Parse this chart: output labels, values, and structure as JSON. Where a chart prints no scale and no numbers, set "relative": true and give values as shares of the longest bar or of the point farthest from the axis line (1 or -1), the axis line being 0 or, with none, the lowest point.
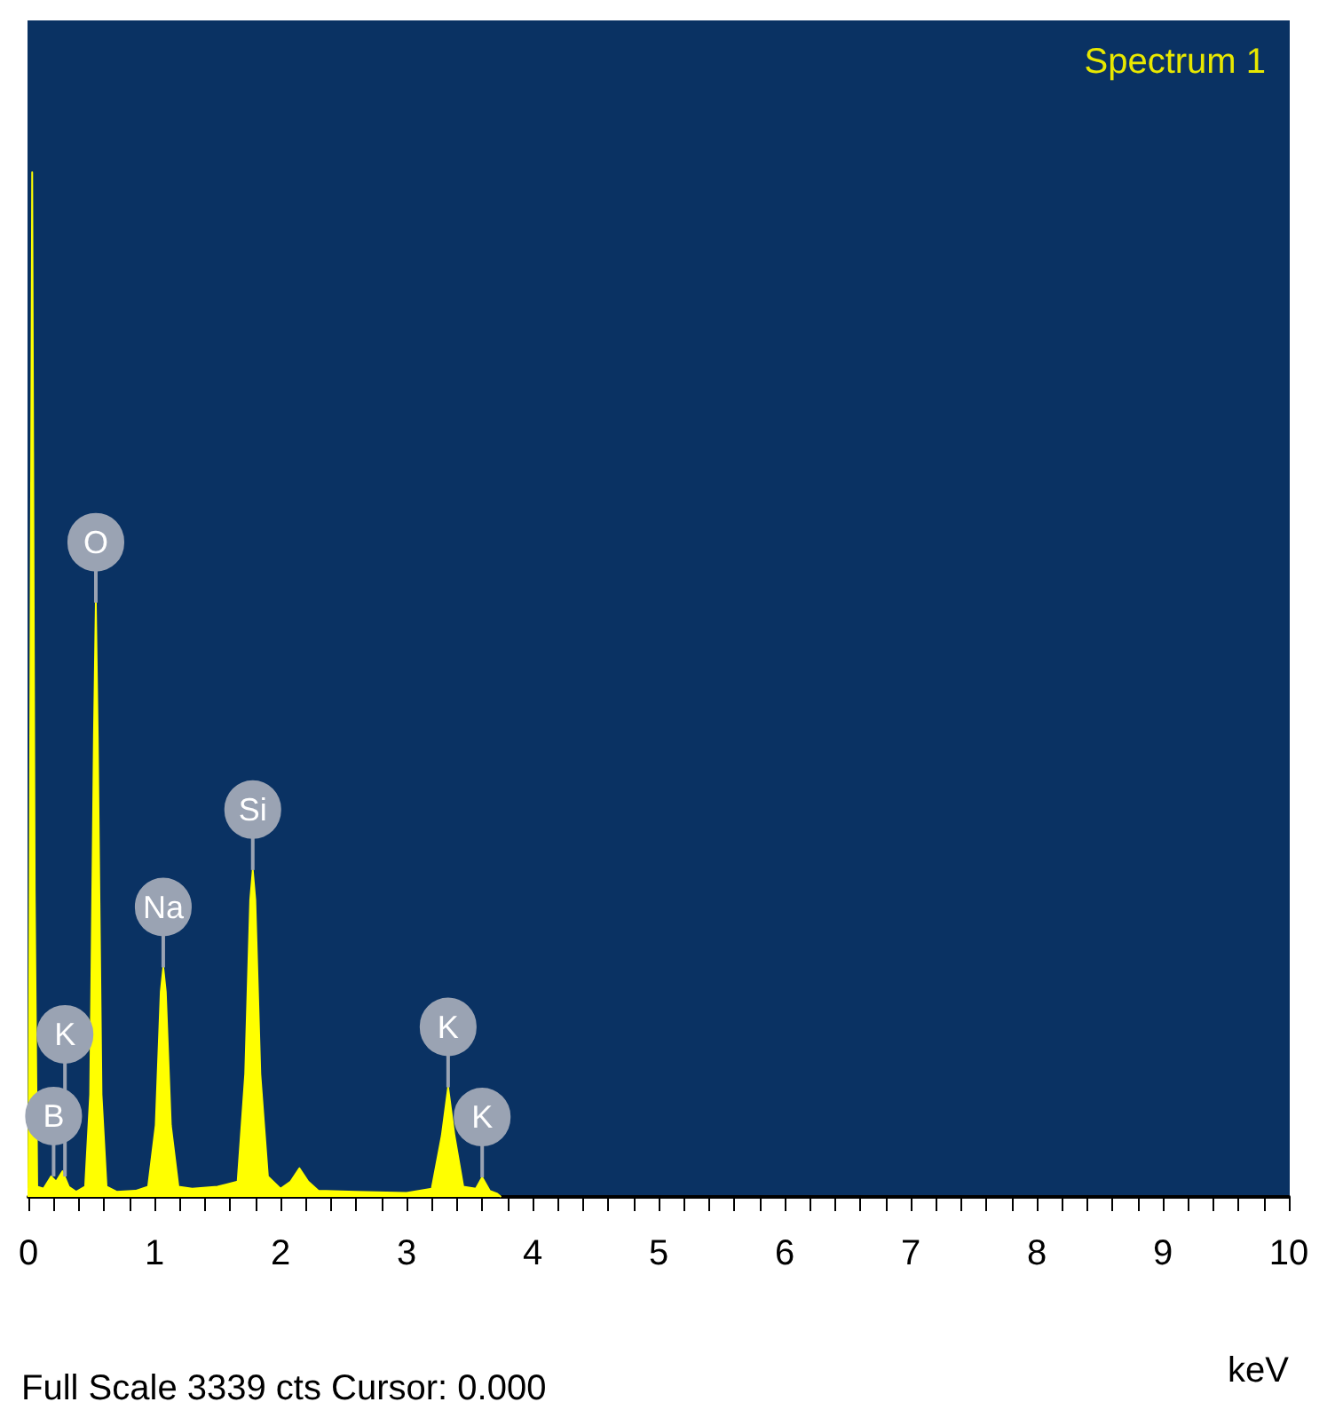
{
  "chart_data": {
    "type": "area",
    "title": "Spectrum 1",
    "xlabel": "keV",
    "relative": true,
    "color": "#ffff00",
    "x": [
      0,
      0.01,
      0.03,
      0.05,
      0.07,
      0.12,
      0.18,
      0.22,
      0.27,
      0.32,
      0.38,
      0.45,
      0.49,
      0.52,
      0.535,
      0.55,
      0.58,
      0.62,
      0.7,
      0.85,
      0.95,
      1.01,
      1.05,
      1.07,
      1.09,
      1.13,
      1.19,
      1.3,
      1.5,
      1.66,
      1.72,
      1.76,
      1.78,
      1.8,
      1.84,
      1.9,
      2.0,
      2.08,
      2.15,
      2.22,
      2.3,
      2.6,
      3.0,
      3.2,
      3.28,
      3.33,
      3.38,
      3.45,
      3.55,
      3.6,
      3.66,
      3.72,
      3.75
    ],
    "values": [
      0,
      0.3,
      1,
      0.3,
      0.01,
      0.008,
      0.02,
      0.015,
      0.025,
      0.01,
      0.005,
      0.01,
      0.1,
      0.45,
      0.58,
      0.45,
      0.1,
      0.01,
      0.005,
      0.006,
      0.01,
      0.07,
      0.2,
      0.224,
      0.2,
      0.07,
      0.01,
      0.008,
      0.01,
      0.015,
      0.12,
      0.29,
      0.319,
      0.29,
      0.12,
      0.02,
      0.008,
      0.015,
      0.028,
      0.015,
      0.006,
      0.005,
      0.004,
      0.008,
      0.06,
      0.107,
      0.06,
      0.01,
      0.008,
      0.019,
      0.006,
      0.003,
      0
    ],
    "xlim": [
      0,
      10
    ],
    "xticks": [
      0,
      {
        "value": 0.2,
        "label": null
      },
      {
        "value": 0.4,
        "label": null
      },
      {
        "value": 0.6,
        "label": null
      },
      {
        "value": 0.8,
        "label": null
      },
      1,
      {
        "value": 1.2,
        "label": null
      },
      {
        "value": 1.4,
        "label": null
      },
      {
        "value": 1.6,
        "label": null
      },
      {
        "value": 1.8,
        "label": null
      },
      2,
      {
        "value": 2.2,
        "label": null
      },
      {
        "value": 2.4,
        "label": null
      },
      {
        "value": 2.6,
        "label": null
      },
      {
        "value": 2.8,
        "label": null
      },
      3,
      {
        "value": 3.2,
        "label": null
      },
      {
        "value": 3.4,
        "label": null
      },
      {
        "value": 3.6,
        "label": null
      },
      {
        "value": 3.8,
        "label": null
      },
      4,
      {
        "value": 4.2,
        "label": null
      },
      {
        "value": 4.4,
        "label": null
      },
      {
        "value": 4.6,
        "label": null
      },
      {
        "value": 4.8,
        "label": null
      },
      5,
      {
        "value": 5.2,
        "label": null
      },
      {
        "value": 5.4,
        "label": null
      },
      {
        "value": 5.6,
        "label": null
      },
      {
        "value": 5.8,
        "label": null
      },
      6,
      {
        "value": 6.2,
        "label": null
      },
      {
        "value": 6.4,
        "label": null
      },
      {
        "value": 6.6,
        "label": null
      },
      {
        "value": 6.8,
        "label": null
      },
      7,
      {
        "value": 7.2,
        "label": null
      },
      {
        "value": 7.4,
        "label": null
      },
      {
        "value": 7.6,
        "label": null
      },
      {
        "value": 7.8,
        "label": null
      },
      8,
      {
        "value": 8.2,
        "label": null
      },
      {
        "value": 8.4,
        "label": null
      },
      {
        "value": 8.6,
        "label": null
      },
      {
        "value": 8.8,
        "label": null
      },
      9,
      {
        "value": 9.2,
        "label": null
      },
      {
        "value": 9.4,
        "label": null
      },
      {
        "value": 9.6,
        "label": null
      },
      {
        "value": 9.8,
        "label": null
      },
      10
    ],
    "grid": false,
    "marker": "none",
    "annotations": [
      {
        "text": "B",
        "x": 0.2,
        "y": 0.02
      },
      {
        "text": "K",
        "x": 0.29,
        "y": 0.02
      },
      {
        "text": "O",
        "x": 0.535,
        "y": 0.58
      },
      {
        "text": "Na",
        "x": 1.07,
        "y": 0.224
      },
      {
        "text": "Si",
        "x": 1.78,
        "y": 0.319
      },
      {
        "text": "K",
        "x": 3.33,
        "y": 0.107
      },
      {
        "text": "K",
        "x": 3.6,
        "y": 0.019
      },
      "Full Scale 3339 cts Cursor: 0.000"
    ]
  }
}
